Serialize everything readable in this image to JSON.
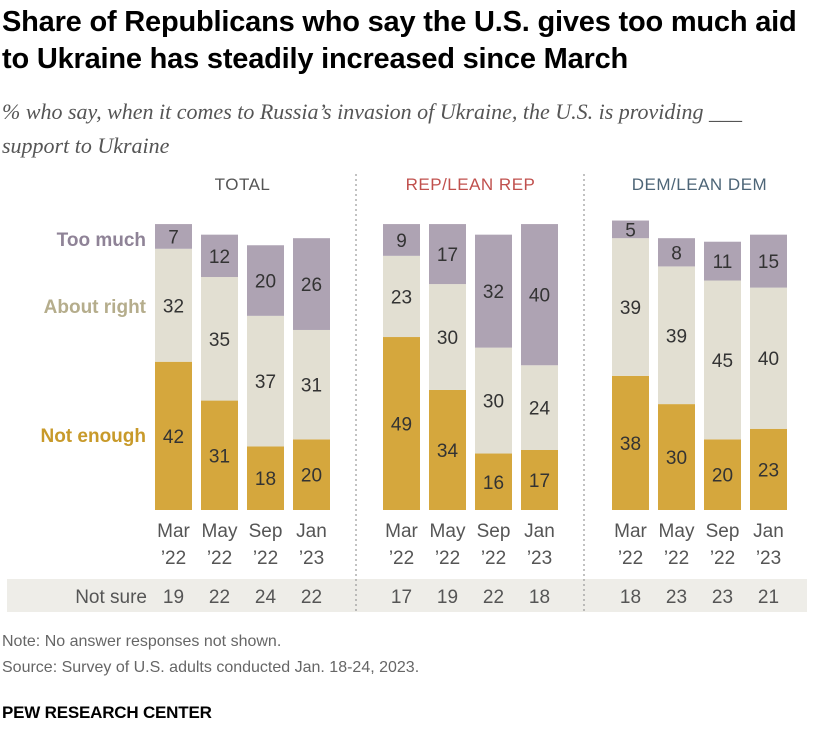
{
  "title": "Share of Republicans who say the U.S. gives too much aid to Ukraine has steadily increased since March",
  "subtitle": "% who say, when it comes to Russia’s invasion of Ukraine, the U.S. is providing ___ support to Ukraine",
  "note": "Note: No answer responses not shown.",
  "source": "Source: Survey of U.S. adults conducted Jan. 18-24, 2023.",
  "brand": "PEW RESEARCH CENTER",
  "colors": {
    "too_much": "#aea3b3",
    "about_right": "#e2dfd2",
    "not_enough": "#d5a73d",
    "total_header": "#555555",
    "rep_header": "#c0504d",
    "dem_header": "#4d6577",
    "legend_too_much": "#8f8397",
    "legend_about_right": "#b5ad8c",
    "legend_not_enough": "#c89a2a",
    "not_sure_band": "#eeede8"
  },
  "chart_data": {
    "type": "bar",
    "stacked": true,
    "categories": [
      [
        "Mar",
        "’22"
      ],
      [
        "May",
        "’22"
      ],
      [
        "Sep",
        "’22"
      ],
      [
        "Jan",
        "’23"
      ]
    ],
    "series_labels": [
      "Too much",
      "About right",
      "Not enough"
    ],
    "not_sure_label": "Not sure",
    "panels": [
      {
        "name": "TOTAL",
        "series": [
          {
            "name": "Too much",
            "values": [
              7,
              12,
              20,
              26
            ]
          },
          {
            "name": "About right",
            "values": [
              32,
              35,
              37,
              31
            ]
          },
          {
            "name": "Not enough",
            "values": [
              42,
              31,
              18,
              20
            ]
          }
        ],
        "not_sure": [
          19,
          22,
          24,
          22
        ]
      },
      {
        "name": "REP/LEAN REP",
        "series": [
          {
            "name": "Too much",
            "values": [
              9,
              17,
              32,
              40
            ]
          },
          {
            "name": "About right",
            "values": [
              23,
              30,
              30,
              24
            ]
          },
          {
            "name": "Not enough",
            "values": [
              49,
              34,
              16,
              17
            ]
          }
        ],
        "not_sure": [
          17,
          19,
          22,
          18
        ]
      },
      {
        "name": "DEM/LEAN DEM",
        "series": [
          {
            "name": "Too much",
            "values": [
              5,
              8,
              11,
              15
            ]
          },
          {
            "name": "About right",
            "values": [
              39,
              39,
              45,
              40
            ]
          },
          {
            "name": "Not enough",
            "values": [
              38,
              30,
              20,
              23
            ]
          }
        ],
        "not_sure": [
          18,
          23,
          23,
          21
        ]
      }
    ]
  }
}
